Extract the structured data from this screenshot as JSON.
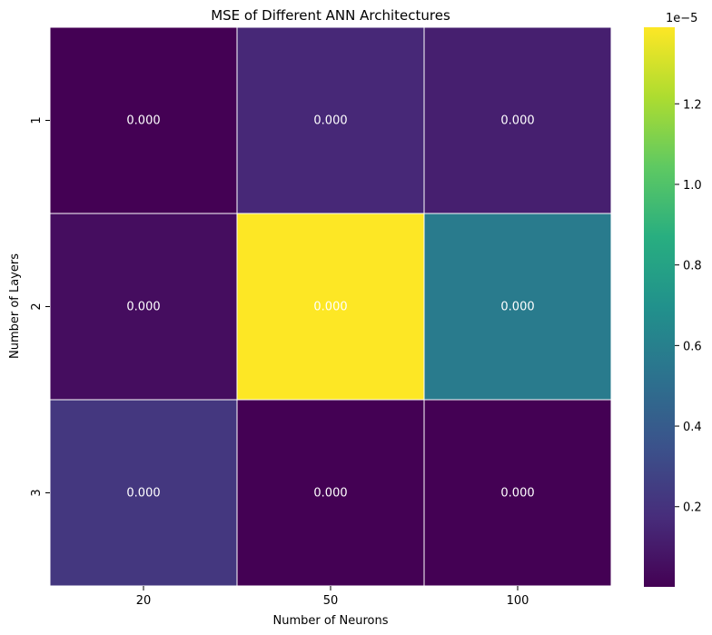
{
  "chart_data": {
    "type": "heatmap",
    "title": "MSE of Different ANN Architectures",
    "xlabel": "Number of Neurons",
    "ylabel": "Number of Layers",
    "x_categories": [
      "20",
      "50",
      "100"
    ],
    "y_categories": [
      "1",
      "2",
      "3"
    ],
    "values": [
      [
        1e-08,
        1.55e-06,
        1.2e-06
      ],
      [
        5e-07,
        1.39e-05,
        5.7e-06
      ],
      [
        2.2e-06,
        1e-08,
        1e-08
      ]
    ],
    "cell_labels": [
      [
        "0.000",
        "0.000",
        "0.000"
      ],
      [
        "0.000",
        "0.000",
        "0.000"
      ],
      [
        "0.000",
        "0.000",
        "0.000"
      ]
    ],
    "colormap": "viridis",
    "color_range": [
      1e-08,
      1.39e-05
    ],
    "colorbar": {
      "ticks": [
        0.2,
        0.4,
        0.6,
        0.8,
        1.0,
        1.2
      ],
      "tick_labels": [
        "0.2",
        "0.4",
        "0.6",
        "0.8",
        "1.0",
        "1.2"
      ],
      "multiplier": "1e−5"
    },
    "grid": false
  }
}
